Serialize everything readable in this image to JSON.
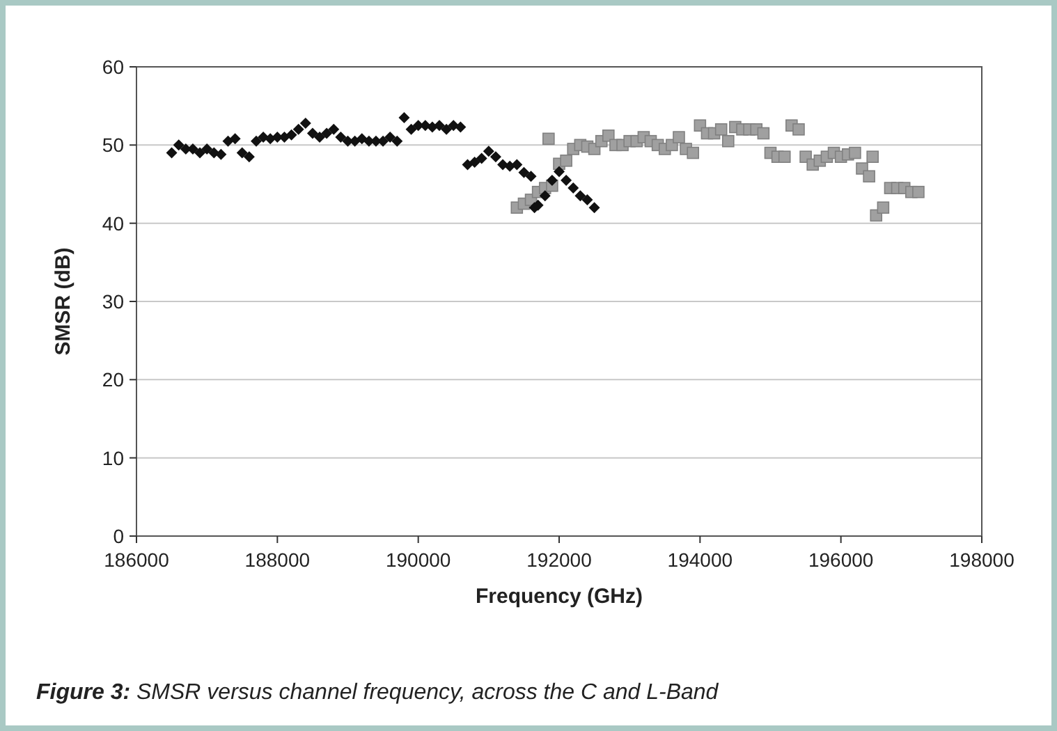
{
  "chart_data": {
    "type": "scatter",
    "xlabel": "Frequency (GHz)",
    "ylabel": "SMSR (dB)",
    "annotations": [
      "Figure 3: SMSR versus channel frequency, across the C and L-Band"
    ],
    "xlim": [
      186000,
      198000
    ],
    "xticks": [
      186000,
      188000,
      190000,
      192000,
      194000,
      196000,
      198000
    ],
    "ylim": [
      0,
      60
    ],
    "yticks": [
      0,
      10,
      20,
      30,
      40,
      50,
      60
    ],
    "grid": "y",
    "series": [
      {
        "color": "#111111",
        "marker": "diamond",
        "x": [
          186500,
          186600,
          186700,
          186800,
          186900,
          187000,
          187100,
          187200,
          187300,
          187400,
          187500,
          187600,
          187700,
          187800,
          187900,
          188000,
          188100,
          188200,
          188300,
          188400,
          188500,
          188600,
          188700,
          188800,
          188900,
          189000,
          189100,
          189200,
          189300,
          189400,
          189500,
          189600,
          189700,
          189800,
          189900,
          190000,
          190100,
          190200,
          190300,
          190400,
          190500,
          190600,
          190700,
          190800,
          190900,
          191000,
          191100,
          191200,
          191300,
          191400,
          191500,
          191600,
          191650,
          191700,
          191800,
          191900,
          192000,
          192100,
          192200,
          192300,
          192400,
          192500
        ],
        "values": [
          49,
          50,
          49.5,
          49.5,
          49,
          49.5,
          49,
          48.8,
          50.5,
          50.8,
          49,
          48.5,
          50.5,
          51,
          50.8,
          51,
          51,
          51.3,
          52,
          52.8,
          51.5,
          51,
          51.5,
          52,
          51,
          50.5,
          50.5,
          50.8,
          50.5,
          50.5,
          50.5,
          51,
          50.5,
          53.5,
          52,
          52.5,
          52.5,
          52.3,
          52.5,
          52,
          52.5,
          52.3,
          47.5,
          47.8,
          48.3,
          49.2,
          48.5,
          47.5,
          47.3,
          47.5,
          46.5,
          46,
          42,
          42.3,
          43.5,
          45.5,
          46.6,
          45.5,
          44.5,
          43.5,
          43,
          42
        ]
      },
      {
        "color": "#a0a0a0",
        "marker": "square",
        "x": [
          191400,
          191500,
          191600,
          191700,
          191800,
          191850,
          191900,
          192000,
          192100,
          192200,
          192300,
          192400,
          192500,
          192600,
          192700,
          192800,
          192900,
          193000,
          193100,
          193200,
          193300,
          193400,
          193500,
          193600,
          193700,
          193800,
          193900,
          194000,
          194100,
          194200,
          194300,
          194400,
          194500,
          194600,
          194700,
          194800,
          194900,
          195000,
          195100,
          195200,
          195300,
          195400,
          195500,
          195600,
          195700,
          195800,
          195900,
          196000,
          196100,
          196200,
          196300,
          196400,
          196450,
          196500,
          196600,
          196700,
          196800,
          196900,
          197000,
          197100
        ],
        "values": [
          42,
          42.5,
          43,
          44,
          44.5,
          50.8,
          44.8,
          47.6,
          48,
          49.5,
          50,
          49.8,
          49.5,
          50.5,
          51.2,
          50,
          50,
          50.5,
          50.5,
          51,
          50.5,
          50,
          49.5,
          50,
          51,
          49.5,
          49,
          52.5,
          51.5,
          51.5,
          52,
          50.5,
          52.3,
          52,
          52,
          52,
          51.5,
          49,
          48.5,
          48.5,
          52.5,
          52,
          48.5,
          47.5,
          48,
          48.5,
          49,
          48.5,
          48.8,
          49,
          47,
          46,
          48.5,
          41,
          42,
          44.5,
          44.5,
          44.5,
          44,
          44
        ]
      }
    ]
  }
}
